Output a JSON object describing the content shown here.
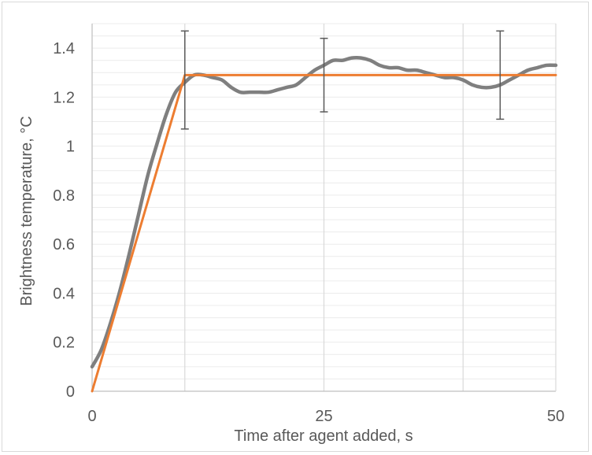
{
  "chart_data": {
    "type": "line",
    "title": "",
    "xlabel": "Time after agent added, s",
    "ylabel": "Brightness temperature, °C",
    "xlim": [
      0,
      50
    ],
    "ylim": [
      0,
      1.5
    ],
    "x_ticks": [
      0,
      25,
      50
    ],
    "x_tick_labels": [
      "0",
      "25",
      "50"
    ],
    "y_ticks": [
      0,
      0.2,
      0.4,
      0.6,
      0.8,
      1,
      1.2,
      1.4
    ],
    "y_tick_labels": [
      "0",
      "0.2",
      "0.4",
      "0.6",
      "0.8",
      "1",
      "1.2",
      "1.4"
    ],
    "x_major_gridlines": [
      10,
      25,
      40
    ],
    "grid": true,
    "legend": "none",
    "series": [
      {
        "color": "#7f7f7f",
        "x": [
          0,
          1,
          2,
          3,
          4,
          5,
          6,
          7,
          8,
          9,
          10,
          11,
          12,
          13,
          14,
          15,
          16,
          17,
          18,
          19,
          20,
          21,
          22,
          23,
          24,
          25,
          26,
          27,
          28,
          29,
          30,
          31,
          32,
          33,
          34,
          35,
          36,
          37,
          38,
          39,
          40,
          41,
          42,
          43,
          44,
          45,
          46,
          47,
          48,
          49,
          50
        ],
        "y": [
          0.1,
          0.17,
          0.28,
          0.41,
          0.56,
          0.72,
          0.88,
          1.01,
          1.13,
          1.22,
          1.26,
          1.29,
          1.29,
          1.28,
          1.27,
          1.24,
          1.22,
          1.22,
          1.22,
          1.22,
          1.23,
          1.24,
          1.25,
          1.28,
          1.31,
          1.33,
          1.35,
          1.35,
          1.36,
          1.36,
          1.35,
          1.33,
          1.32,
          1.32,
          1.31,
          1.31,
          1.3,
          1.29,
          1.28,
          1.28,
          1.27,
          1.25,
          1.24,
          1.24,
          1.25,
          1.27,
          1.29,
          1.31,
          1.32,
          1.33,
          1.33
        ]
      },
      {
        "color": "#ed7d31",
        "x": [
          0,
          10,
          50
        ],
        "y": [
          0,
          1.29,
          1.29
        ]
      }
    ],
    "error_bars": {
      "color": "#595959",
      "points": [
        {
          "x": 10,
          "low": 1.07,
          "high": 1.47
        },
        {
          "x": 25,
          "low": 1.14,
          "high": 1.44
        },
        {
          "x": 44,
          "low": 1.11,
          "high": 1.47
        }
      ]
    }
  }
}
